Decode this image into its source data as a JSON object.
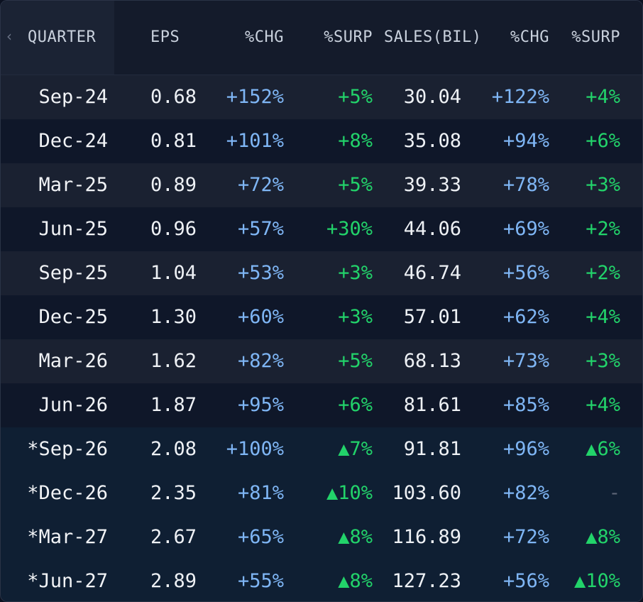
{
  "header": {
    "back_icon": "chevron-left-icon",
    "columns": {
      "quarter": "QUARTER",
      "eps": "EPS",
      "eps_chg": "%CHG",
      "eps_surp": "%SURP",
      "sales": "SALES(BIL)",
      "sales_chg": "%CHG",
      "sales_surp": "%SURP"
    }
  },
  "colors": {
    "change": "#7fb6f5",
    "surprise": "#22d36a",
    "forecast_row_bg": "#0f1f33"
  },
  "rows": [
    {
      "quarter": "Sep-24",
      "eps": "0.68",
      "eps_chg": "+152%",
      "eps_surp": "+5%",
      "sales": "30.04",
      "sales_chg": "+122%",
      "sales_surp": "+4%",
      "forecast": false
    },
    {
      "quarter": "Dec-24",
      "eps": "0.81",
      "eps_chg": "+101%",
      "eps_surp": "+8%",
      "sales": "35.08",
      "sales_chg": "+94%",
      "sales_surp": "+6%",
      "forecast": false
    },
    {
      "quarter": "Mar-25",
      "eps": "0.89",
      "eps_chg": "+72%",
      "eps_surp": "+5%",
      "sales": "39.33",
      "sales_chg": "+78%",
      "sales_surp": "+3%",
      "forecast": false
    },
    {
      "quarter": "Jun-25",
      "eps": "0.96",
      "eps_chg": "+57%",
      "eps_surp": "+30%",
      "sales": "44.06",
      "sales_chg": "+69%",
      "sales_surp": "+2%",
      "forecast": false
    },
    {
      "quarter": "Sep-25",
      "eps": "1.04",
      "eps_chg": "+53%",
      "eps_surp": "+3%",
      "sales": "46.74",
      "sales_chg": "+56%",
      "sales_surp": "+2%",
      "forecast": false
    },
    {
      "quarter": "Dec-25",
      "eps": "1.30",
      "eps_chg": "+60%",
      "eps_surp": "+3%",
      "sales": "57.01",
      "sales_chg": "+62%",
      "sales_surp": "+4%",
      "forecast": false
    },
    {
      "quarter": "Mar-26",
      "eps": "1.62",
      "eps_chg": "+82%",
      "eps_surp": "+5%",
      "sales": "68.13",
      "sales_chg": "+73%",
      "sales_surp": "+3%",
      "forecast": false
    },
    {
      "quarter": "Jun-26",
      "eps": "1.87",
      "eps_chg": "+95%",
      "eps_surp": "+6%",
      "sales": "81.61",
      "sales_chg": "+85%",
      "sales_surp": "+4%",
      "forecast": false
    },
    {
      "quarter": "*Sep-26",
      "eps": "2.08",
      "eps_chg": "+100%",
      "eps_surp": "▲7%",
      "sales": "91.81",
      "sales_chg": "+96%",
      "sales_surp": "▲6%",
      "forecast": true
    },
    {
      "quarter": "*Dec-26",
      "eps": "2.35",
      "eps_chg": "+81%",
      "eps_surp": "▲10%",
      "sales": "103.60",
      "sales_chg": "+82%",
      "sales_surp": "-",
      "forecast": true
    },
    {
      "quarter": "*Mar-27",
      "eps": "2.67",
      "eps_chg": "+65%",
      "eps_surp": "▲8%",
      "sales": "116.89",
      "sales_chg": "+72%",
      "sales_surp": "▲8%",
      "forecast": true
    },
    {
      "quarter": "*Jun-27",
      "eps": "2.89",
      "eps_chg": "+55%",
      "eps_surp": "▲8%",
      "sales": "127.23",
      "sales_chg": "+56%",
      "sales_surp": "▲10%",
      "forecast": true
    }
  ]
}
